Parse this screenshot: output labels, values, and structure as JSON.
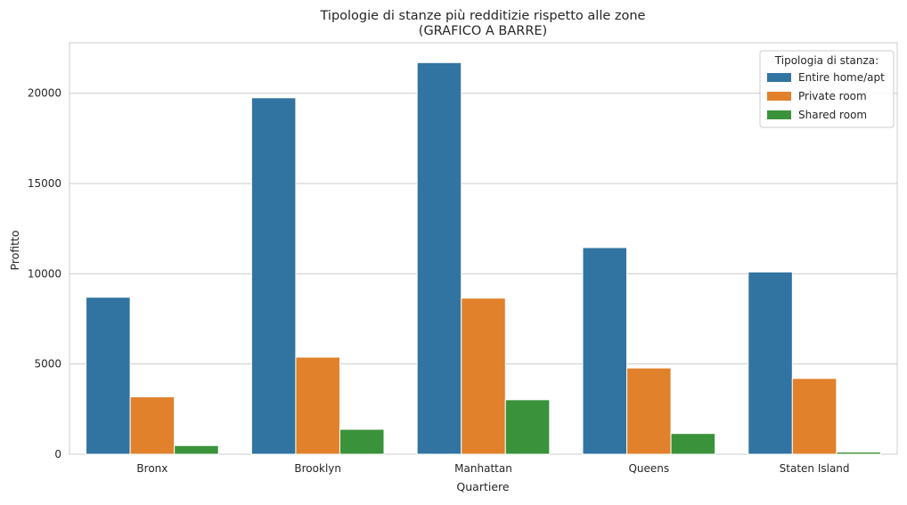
{
  "chart_data": {
    "type": "bar",
    "title": "Tipologie di stanze più redditizie rispetto alle zone",
    "subtitle": "(GRAFICO A BARRE)",
    "xlabel": "Quartiere",
    "ylabel": "Profitto",
    "categories": [
      "Bronx",
      "Brooklyn",
      "Manhattan",
      "Queens",
      "Staten Island"
    ],
    "ylim": [
      0,
      22800
    ],
    "yticks": [
      0,
      5000,
      10000,
      15000,
      20000
    ],
    "grid": true,
    "legend": {
      "title": "Tipologia di stanza:",
      "placement": "top-right"
    },
    "series": [
      {
        "name": "Entire home/apt",
        "color": "#3274a1",
        "values": [
          8700,
          19750,
          21700,
          11450,
          10100
        ]
      },
      {
        "name": "Private room",
        "color": "#e1812c",
        "values": [
          3180,
          5380,
          8650,
          4780,
          4200
        ]
      },
      {
        "name": "Shared room",
        "color": "#3a923a",
        "values": [
          480,
          1380,
          3020,
          1150,
          120
        ]
      }
    ]
  }
}
